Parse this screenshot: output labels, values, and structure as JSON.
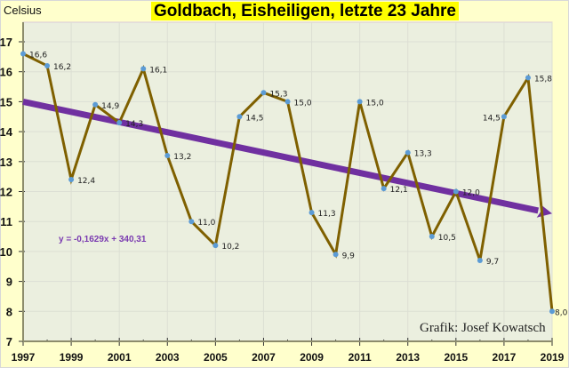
{
  "chart_data": {
    "type": "line",
    "title": "Goldbach, Eisheiligen, letzte 23 Jahre",
    "ylabel": "Celsius",
    "xlabel": "",
    "xlim": [
      1997,
      2019
    ],
    "ylim": [
      7,
      17.8
    ],
    "x_ticks": [
      "1997",
      "1999",
      "2001",
      "2003",
      "2005",
      "2007",
      "2009",
      "2011",
      "2013",
      "2015",
      "2017",
      "2019"
    ],
    "y_ticks": [
      "7",
      "8",
      "9",
      "10",
      "11",
      "12",
      "13",
      "14",
      "15",
      "16",
      "17"
    ],
    "grid": true,
    "series": [
      {
        "name": "Eisheiligen",
        "color": "#7f6000",
        "marker_color": "#5b9bd5",
        "x": [
          1997,
          1998,
          1999,
          2000,
          2001,
          2002,
          2003,
          2004,
          2005,
          2006,
          2007,
          2008,
          2009,
          2010,
          2011,
          2012,
          2013,
          2014,
          2015,
          2016,
          2017,
          2018,
          2019
        ],
        "values": [
          16.6,
          16.2,
          12.4,
          14.9,
          14.3,
          16.1,
          13.2,
          11.0,
          10.2,
          14.5,
          15.3,
          15.0,
          11.3,
          9.9,
          15.0,
          12.1,
          13.3,
          10.5,
          12.0,
          9.7,
          14.5,
          15.8,
          8.0
        ],
        "labels": [
          "16,6",
          "16,2",
          "12,4",
          "14,9",
          "14,3",
          "16,1",
          "13,2",
          "11,0",
          "10,2",
          "14,5",
          "15,3",
          "15,0",
          "11,3",
          "9,9",
          "15,0",
          "12,1",
          "13,3",
          "10,5",
          "12,0",
          "9,7",
          "14,5",
          "15,8",
          "8,0"
        ]
      }
    ],
    "trendline": {
      "slope": -0.1629,
      "intercept": 340.31,
      "color": "#7030a0",
      "equation": "y = -0,1629x + 340,31"
    },
    "annotation": "Grafik: Josef Kowatsch"
  }
}
